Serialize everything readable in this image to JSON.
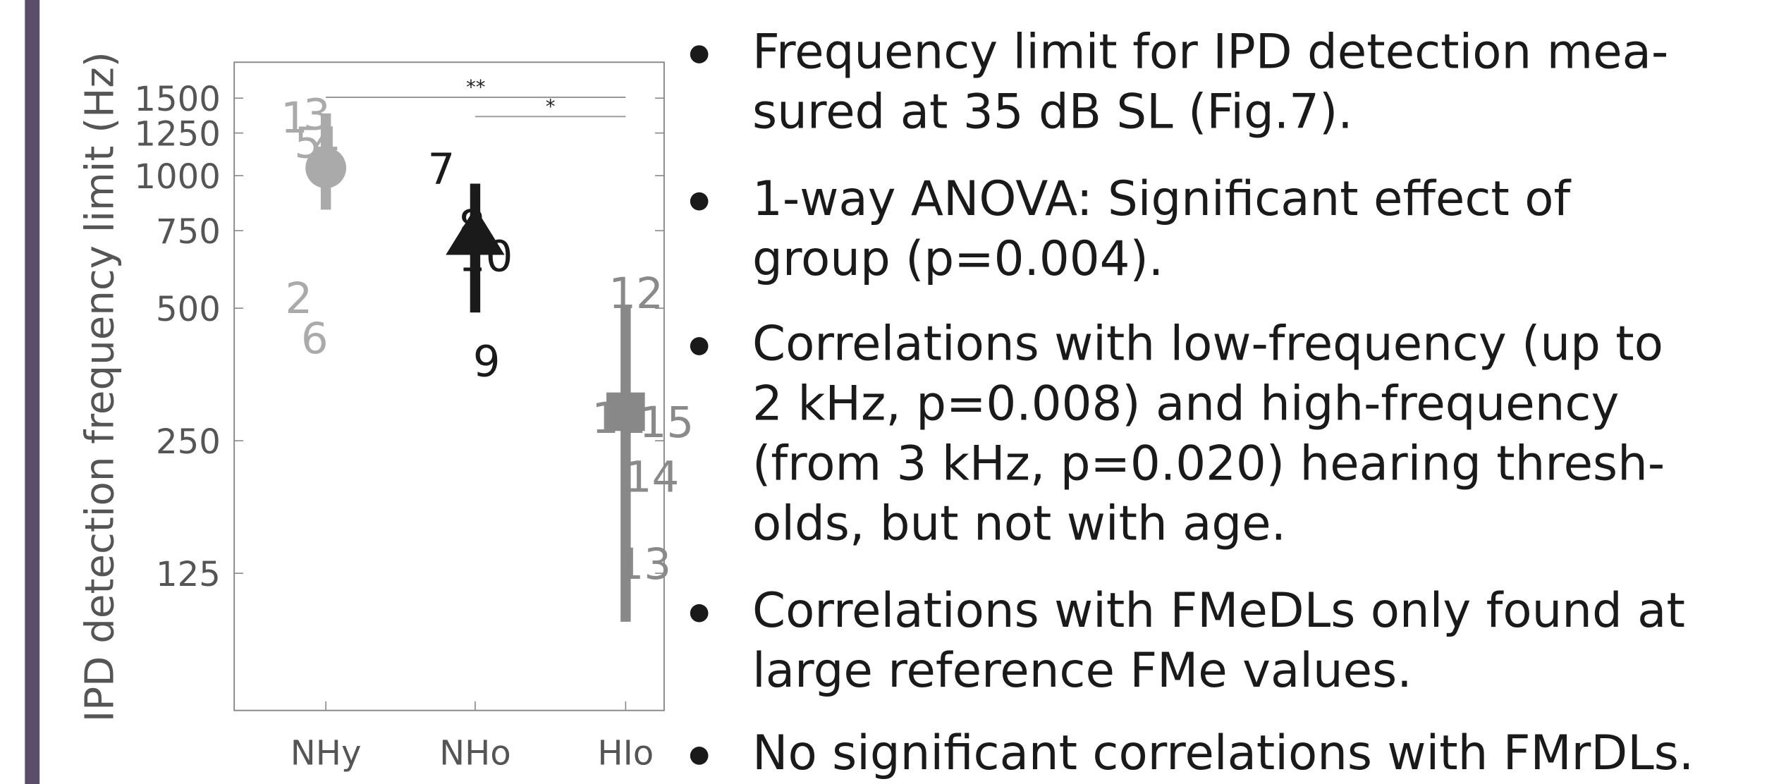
{
  "chart_data": {
    "type": "dot",
    "y_label": "IPD detection frequency limit (Hz)",
    "categories": [
      "NHy",
      "NHo",
      "HIo"
    ],
    "values": [
      1042,
      744,
      291
    ],
    "err_high": [
      1385,
      959,
      506
    ],
    "err_low": [
      837,
      489,
      97
    ],
    "colors": [
      "#aaaaaa",
      "#1a1a1a",
      "#888888"
    ],
    "markers": [
      "circle",
      "triangle",
      "square"
    ],
    "log_scale": true,
    "ylim": [
      61,
      1810
    ],
    "yticks": [
      125,
      250,
      500,
      750,
      1000,
      1250,
      1500
    ],
    "subjects": [
      {
        "label": "1",
        "group": 0,
        "value": 1360
      },
      {
        "label": "2",
        "group": 0,
        "value": 530
      },
      {
        "label": "3",
        "group": 0,
        "value": 1385
      },
      {
        "label": "4",
        "group": 0,
        "value": 1195
      },
      {
        "label": "5",
        "group": 0,
        "value": 1195
      },
      {
        "label": "6",
        "group": 0,
        "value": 429
      },
      {
        "label": "7",
        "group": 1,
        "value": 1042
      },
      {
        "label": "8",
        "group": 1,
        "value": 775
      },
      {
        "label": "9",
        "group": 1,
        "value": 381
      },
      {
        "label": "10",
        "group": 1,
        "value": 660
      },
      {
        "label": "11",
        "group": 2,
        "value": 283
      },
      {
        "label": "12",
        "group": 2,
        "value": 543
      },
      {
        "label": "13",
        "group": 2,
        "value": 132
      },
      {
        "label": "14",
        "group": 2,
        "value": 208
      },
      {
        "label": "15",
        "group": 2,
        "value": 277
      }
    ],
    "significance": [
      {
        "label": "**",
        "from": 0,
        "to": 2
      },
      {
        "label": "*",
        "from": 1,
        "to": 2
      }
    ]
  },
  "bullets": [
    [
      "Frequency limit for IPD detection mea-",
      "sured at 35 dB SL (Fig.7)."
    ],
    [
      "1-way ANOVA: Significant effect of",
      "group (p=0.004)."
    ],
    [
      "Correlations with low-frequency (up to",
      "2 kHz, p=0.008) and high-frequency",
      "(from 3 kHz, p=0.020) hearing thresh-",
      "olds, but not with age."
    ],
    [
      "Correlations with FMeDLs only found at",
      "large reference FMe values."
    ],
    [
      "No significant correlations with FMrDLs."
    ]
  ]
}
